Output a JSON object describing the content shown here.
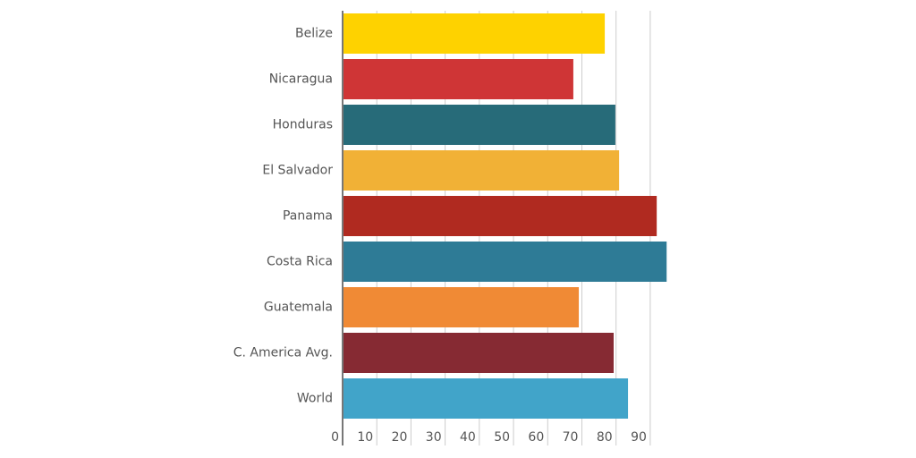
{
  "chart_data": {
    "type": "hbar",
    "categories": [
      "Belize",
      "Nicaragua",
      "Honduras",
      "El Salvador",
      "Panama",
      "Costa Rica",
      "Guatemala",
      "C. America Avg.",
      "World"
    ],
    "values": [
      76.7,
      67.5,
      79.8,
      80.9,
      91.9,
      94.8,
      69.1,
      79.3,
      83.5
    ],
    "colors": [
      "#fed200",
      "#cf3536",
      "#276b79",
      "#f1b136",
      "#b02a20",
      "#2e7b96",
      "#f08a35",
      "#862a33",
      "#41a4c9"
    ],
    "xlim": [
      0,
      95
    ],
    "xticks": [
      0,
      10,
      20,
      30,
      40,
      50,
      60,
      70,
      80,
      90
    ],
    "grid": true
  }
}
